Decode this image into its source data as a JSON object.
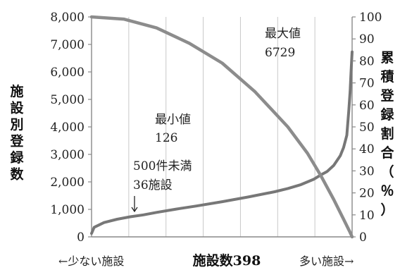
{
  "chart_data": {
    "type": "line",
    "xlabel": "施設数398",
    "x_left_label": "←少ない施設",
    "x_right_label": "多い施設→",
    "ylabel_left": "施設別登録数",
    "ylabel_right": "累積登録割合（％）",
    "ylim_left": [
      0,
      8000
    ],
    "ylim_right": [
      0,
      100
    ],
    "yticks_left": [
      "0",
      "1,000",
      "2,000",
      "3,000",
      "4,000",
      "5,000",
      "6,000",
      "7,000",
      "8,000"
    ],
    "yticks_right": [
      "0",
      "10",
      "20",
      "30",
      "40",
      "50",
      "60",
      "70",
      "80",
      "90",
      "100"
    ],
    "xlim": [
      1,
      398
    ],
    "grid": "vertical",
    "series": [
      {
        "axis": "left",
        "color": "#777777",
        "x": [
          1,
          5,
          20,
          40,
          60,
          80,
          100,
          130,
          160,
          200,
          240,
          280,
          300,
          320,
          340,
          350,
          360,
          370,
          380,
          385,
          390,
          393,
          395,
          396,
          397,
          398
        ],
        "y": [
          126,
          350,
          520,
          640,
          730,
          800,
          890,
          1010,
          1120,
          1280,
          1450,
          1640,
          1760,
          1900,
          2100,
          2250,
          2380,
          2600,
          2950,
          3250,
          3700,
          4600,
          5300,
          5800,
          6300,
          6729
        ]
      },
      {
        "axis": "right",
        "color": "#8c8c8c",
        "x": [
          1,
          50,
          100,
          150,
          200,
          250,
          300,
          330,
          350,
          370,
          385,
          395,
          398
        ],
        "y": [
          100,
          99,
          95,
          88,
          79,
          66,
          50,
          38,
          28,
          17,
          8,
          2,
          0
        ]
      }
    ],
    "annotations": [
      {
        "lines": [
          "最大値",
          "6729"
        ]
      },
      {
        "lines": [
          "最小値",
          "126"
        ]
      },
      {
        "lines": [
          "500件未満",
          "36施設"
        ]
      }
    ]
  }
}
